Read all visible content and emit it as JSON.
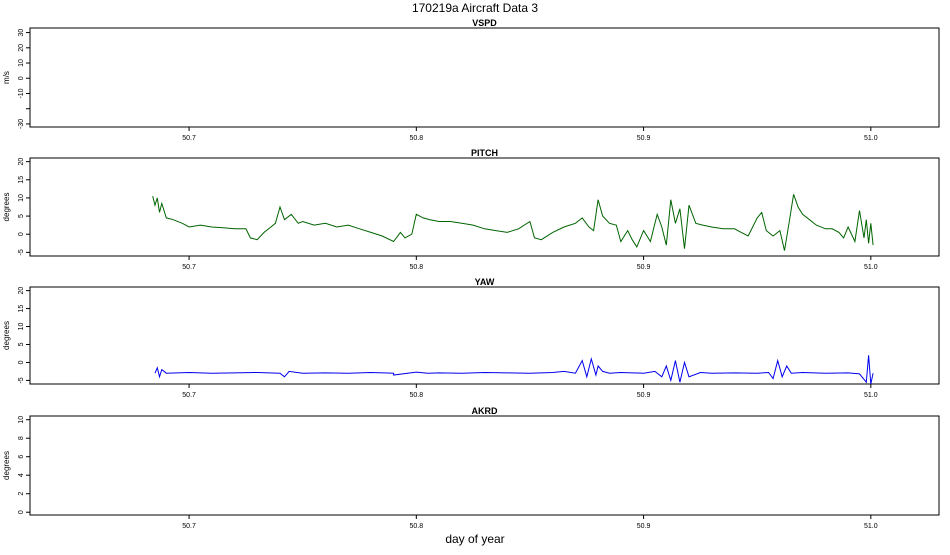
{
  "title": "170219a   Aircraft Data 3",
  "xlabel": "day of year",
  "chart_data": [
    {
      "type": "line",
      "title": "VSPD",
      "ylabel": "m/s",
      "xlim": [
        50.63,
        51.03
      ],
      "ylim": [
        -32,
        33
      ],
      "xticks": [
        50.7,
        50.8,
        50.9,
        51.0
      ],
      "xtick_labels": [
        "50.7",
        "50.8",
        "50.9",
        "51.0"
      ],
      "yticks": [
        -30,
        -20,
        -10,
        0,
        10,
        20,
        30
      ],
      "ytick_labels": [
        "-30",
        "",
        "-10",
        "0",
        "10",
        "20",
        "30"
      ],
      "series": []
    },
    {
      "type": "line",
      "title": "PITCH",
      "ylabel": "degrees",
      "xlim": [
        50.63,
        51.03
      ],
      "ylim": [
        -6,
        21
      ],
      "xticks": [
        50.7,
        50.8,
        50.9,
        51.0
      ],
      "xtick_labels": [
        "50.7",
        "50.8",
        "50.9",
        "51.0"
      ],
      "yticks": [
        -5,
        0,
        5,
        10,
        15,
        20
      ],
      "ytick_labels": [
        "-5",
        "0",
        "5",
        "10",
        "15",
        "20"
      ],
      "series": [
        {
          "color": "#006400",
          "x": [
            50.684,
            50.685,
            50.686,
            50.687,
            50.688,
            50.69,
            50.693,
            50.697,
            50.7,
            50.705,
            50.71,
            50.715,
            50.72,
            50.725,
            50.727,
            50.73,
            50.733,
            50.736,
            50.738,
            50.74,
            50.742,
            50.745,
            50.748,
            50.75,
            50.755,
            50.76,
            50.765,
            50.77,
            50.775,
            50.78,
            50.785,
            50.79,
            50.793,
            50.795,
            50.798,
            50.8,
            50.803,
            50.806,
            50.81,
            50.815,
            50.82,
            50.825,
            50.83,
            50.835,
            50.84,
            50.845,
            50.85,
            50.852,
            50.855,
            50.86,
            50.865,
            50.87,
            50.873,
            50.876,
            50.878,
            50.88,
            50.882,
            50.885,
            50.888,
            50.89,
            50.893,
            50.895,
            50.897,
            50.9,
            50.903,
            50.906,
            50.908,
            50.91,
            50.912,
            50.914,
            50.916,
            50.918,
            50.92,
            50.923,
            50.926,
            50.93,
            50.935,
            50.94,
            50.943,
            50.946,
            50.948,
            50.95,
            50.952,
            50.954,
            50.957,
            50.96,
            50.962,
            50.964,
            50.966,
            50.968,
            50.97,
            50.973,
            50.976,
            50.98,
            50.983,
            50.986,
            50.988,
            50.99,
            50.993,
            50.995,
            50.997,
            50.998,
            50.999,
            51.0,
            51.001
          ],
          "y": [
            10.5,
            8.0,
            10.0,
            6.0,
            8.5,
            4.5,
            4.0,
            3.0,
            2.0,
            2.5,
            2.0,
            1.8,
            1.5,
            1.5,
            -1.0,
            -1.5,
            0.5,
            2.0,
            3.0,
            7.5,
            4.0,
            5.5,
            3.0,
            3.5,
            2.5,
            3.0,
            2.0,
            2.5,
            1.5,
            0.5,
            -0.5,
            -2.0,
            0.5,
            -1.0,
            0.0,
            5.5,
            4.5,
            4.0,
            3.5,
            3.5,
            3.0,
            2.5,
            1.5,
            1.0,
            0.5,
            1.5,
            3.5,
            -1.0,
            -1.5,
            0.5,
            2.0,
            3.0,
            4.5,
            2.0,
            1.0,
            9.5,
            5.0,
            3.0,
            2.5,
            -2.0,
            1.0,
            -1.5,
            -3.5,
            1.0,
            -2.0,
            5.5,
            2.0,
            -3.0,
            9.5,
            3.0,
            7.0,
            -4.0,
            8.0,
            3.0,
            2.5,
            2.0,
            1.5,
            1.5,
            0.5,
            -0.5,
            2.0,
            4.5,
            6.0,
            1.0,
            -0.5,
            1.0,
            -4.5,
            3.0,
            11.0,
            7.5,
            5.5,
            4.0,
            2.5,
            1.5,
            1.5,
            0.5,
            -1.0,
            2.0,
            -2.0,
            6.5,
            -1.0,
            4.0,
            -2.5,
            3.0,
            -3.0
          ]
        }
      ]
    },
    {
      "type": "line",
      "title": "YAW",
      "ylabel": "degrees",
      "xlim": [
        50.63,
        51.03
      ],
      "ylim": [
        -6,
        21
      ],
      "xticks": [
        50.7,
        50.8,
        50.9,
        51.0
      ],
      "xtick_labels": [
        "50.7",
        "50.8",
        "50.9",
        "51.0"
      ],
      "yticks": [
        -5,
        0,
        5,
        10,
        15,
        20
      ],
      "ytick_labels": [
        "-5",
        "0",
        "5",
        "10",
        "15",
        "20"
      ],
      "series": [
        {
          "color": "#0000ee",
          "x": [
            50.685,
            50.686,
            50.687,
            50.688,
            50.69,
            50.7,
            50.71,
            50.72,
            50.73,
            50.74,
            50.742,
            50.744,
            50.75,
            50.76,
            50.77,
            50.78,
            50.79,
            50.79,
            50.8,
            50.805,
            50.81,
            50.82,
            50.83,
            50.84,
            50.85,
            50.86,
            50.865,
            50.87,
            50.873,
            50.875,
            50.877,
            50.879,
            50.88,
            50.882,
            50.885,
            50.89,
            50.9,
            50.905,
            50.908,
            50.91,
            50.912,
            50.914,
            50.916,
            50.918,
            50.92,
            50.925,
            50.93,
            50.94,
            50.95,
            50.955,
            50.957,
            50.959,
            50.961,
            50.963,
            50.965,
            50.97,
            50.98,
            50.99,
            50.995,
            50.998,
            50.999,
            51.0,
            51.001
          ],
          "y": [
            -3.0,
            -1.5,
            -4.0,
            -2.0,
            -3.0,
            -2.8,
            -3.0,
            -2.9,
            -2.8,
            -3.0,
            -4.0,
            -2.5,
            -3.0,
            -2.9,
            -3.0,
            -2.8,
            -3.0,
            -3.5,
            -2.7,
            -3.0,
            -2.9,
            -3.0,
            -2.8,
            -2.9,
            -3.0,
            -2.8,
            -2.5,
            -3.0,
            0.5,
            -4.0,
            1.0,
            -3.5,
            -1.0,
            -2.5,
            -3.0,
            -2.8,
            -3.0,
            -2.5,
            -4.0,
            -1.0,
            -5.0,
            0.5,
            -5.5,
            0.0,
            -4.0,
            -2.8,
            -3.0,
            -2.9,
            -3.0,
            -2.8,
            -4.5,
            0.5,
            -4.0,
            -1.0,
            -3.0,
            -2.8,
            -3.0,
            -2.9,
            -3.2,
            -5.5,
            2.0,
            -6.0,
            -3.0
          ]
        }
      ]
    },
    {
      "type": "line",
      "title": "AKRD",
      "ylabel": "degrees",
      "xlim": [
        50.63,
        51.03
      ],
      "ylim": [
        -0.3,
        10.4
      ],
      "xticks": [
        50.7,
        50.8,
        50.9,
        51.0
      ],
      "xtick_labels": [
        "50.7",
        "50.8",
        "50.9",
        "51.0"
      ],
      "yticks": [
        0,
        2,
        4,
        6,
        8,
        10
      ],
      "ytick_labels": [
        "0",
        "2",
        "4",
        "6",
        "8",
        "10"
      ],
      "series": []
    }
  ]
}
